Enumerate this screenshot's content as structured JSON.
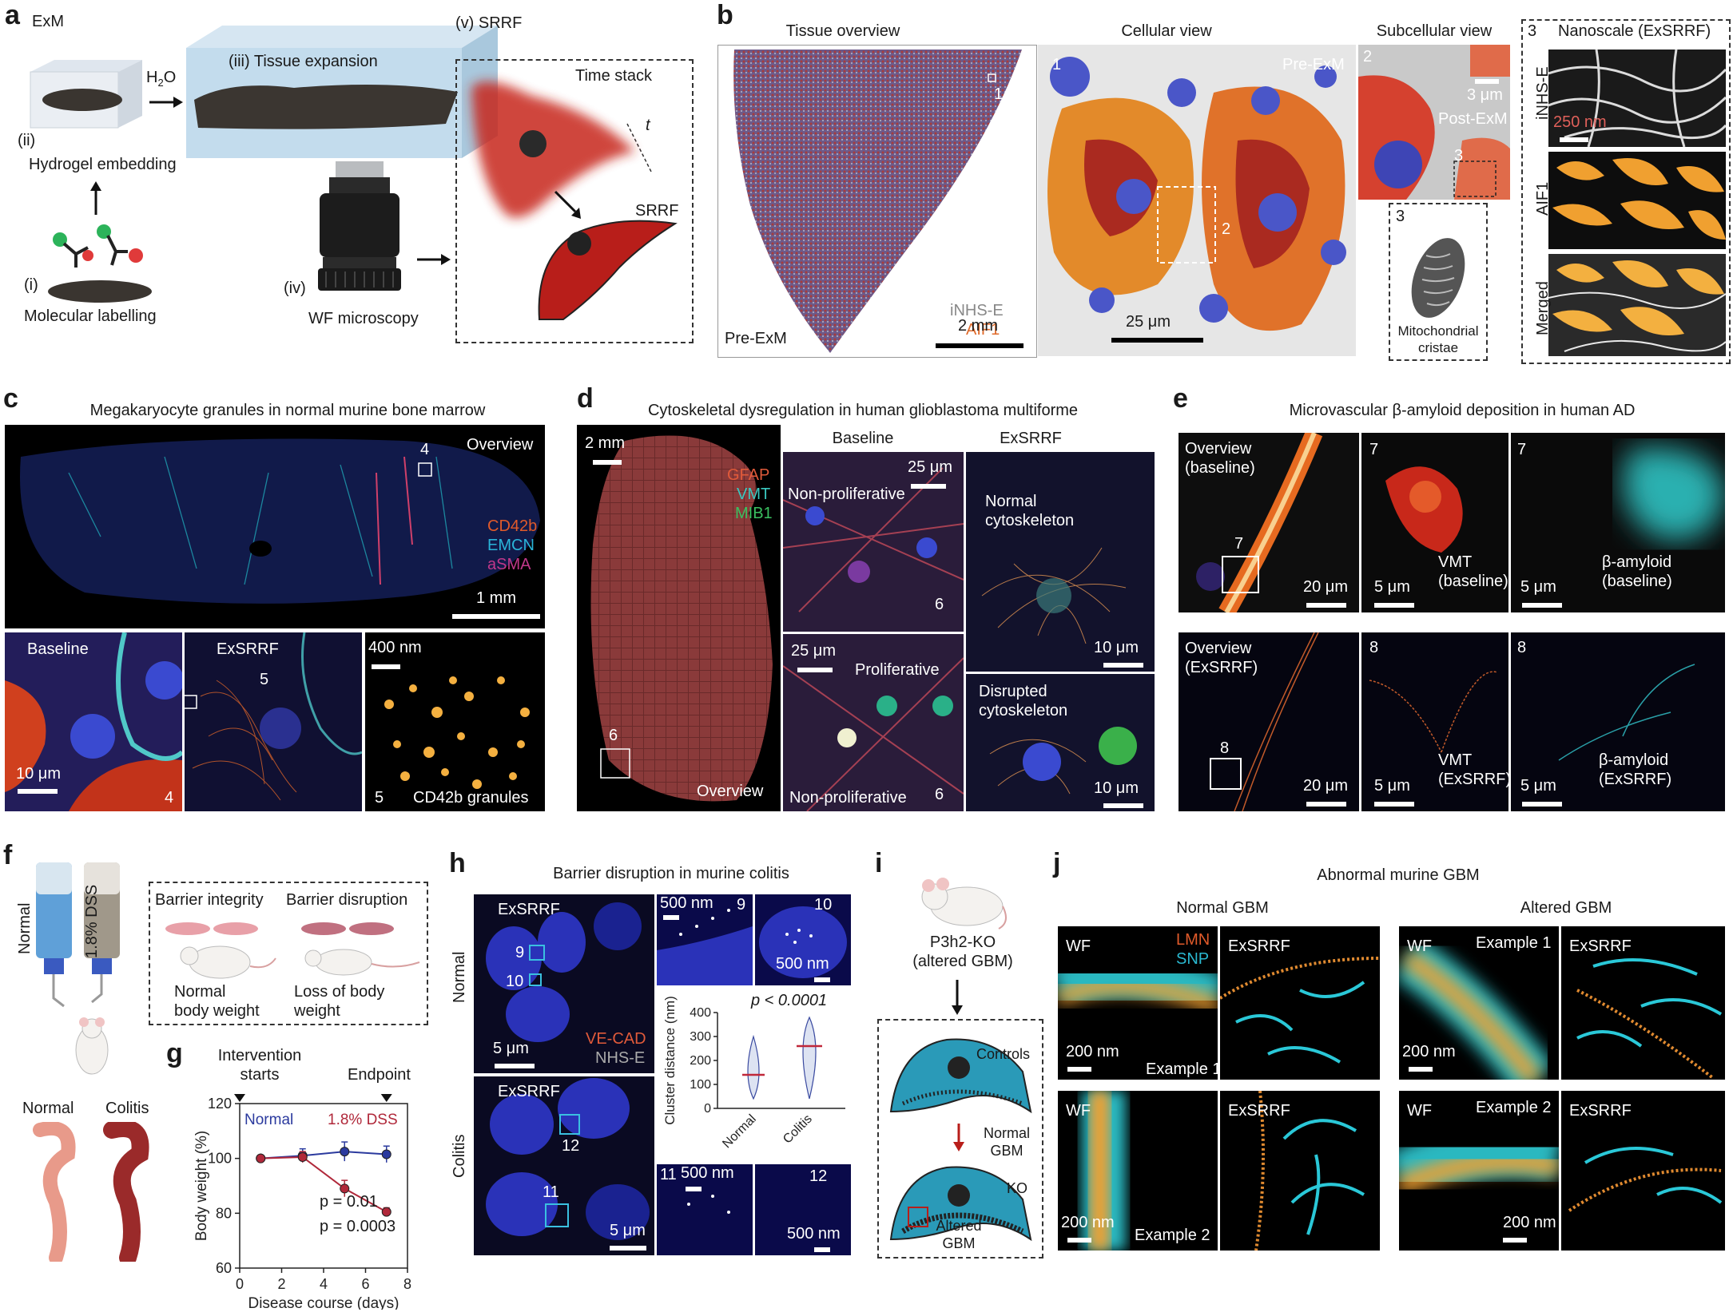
{
  "panel_letters": {
    "a": "a",
    "b": "b",
    "c": "c",
    "d": "d",
    "e": "e",
    "f": "f",
    "g": "g",
    "h": "h",
    "i": "i",
    "j": "j"
  },
  "a": {
    "exm": "ExM",
    "h2o_main": "H",
    "h2o_sub": "2",
    "h2o_end": "O",
    "step_i": "(i)",
    "step_i_text": "Molecular labelling",
    "step_ii": "(ii)",
    "step_ii_text": "Hydrogel embedding",
    "step_iii": "(iii) Tissue expansion",
    "step_iv": "(iv)",
    "step_iv_text": "WF microscopy",
    "step_v": "(v) SRRF",
    "time_stack": "Time stack",
    "t": "t",
    "srrf": "SRRF"
  },
  "b": {
    "tissue_overview": "Tissue overview",
    "cellular_view": "Cellular view",
    "subcellular_view": "Subcellular view",
    "nanoscale_num": "3",
    "nanoscale": "Nanoscale (ExSRRF)",
    "pre_exm": "Pre-ExM",
    "inhs_e": "iNHS-E",
    "aif1": "AIF1",
    "scale_2mm": "2 mm",
    "n1": "1",
    "n2": "2",
    "n3": "3",
    "cell_pre_exm": "Pre-ExM",
    "scale_25um": "25 μm",
    "scale_3um": "3 μm",
    "post_exm": "Post-ExM",
    "mito_label": "Mitochondrial cristae",
    "scale_250nm": "250 nm",
    "side_inhs": "iNHS-E",
    "side_aif1": "AIF1",
    "side_merged": "Merged"
  },
  "c": {
    "title": "Megakaryocyte granules in normal murine bone marrow",
    "overview": "Overview",
    "n4": "4",
    "n5": "5",
    "cd42b": "CD42b",
    "emcn": "EMCN",
    "asma": "aSMA",
    "scale_1mm": "1 mm",
    "baseline": "Baseline",
    "exsrrf": "ExSRRF",
    "scale_10um": "10 μm",
    "scale_400nm": "400 nm",
    "granules": "CD42b granules"
  },
  "d": {
    "title": "Cytoskeletal dysregulation in human glioblastoma multiforme",
    "scale_2mm": "2 mm",
    "gfap": "GFAP",
    "vmt": "VMT",
    "mib1": "MIB1",
    "n6": "6",
    "overview": "Overview",
    "baseline": "Baseline",
    "exsrrf": "ExSRRF",
    "scale_25um": "25 μm",
    "non_prolif": "Non-proliferative",
    "prolif": "Proliferative",
    "normal_cyto": "Normal cytoskeleton",
    "disrupted_cyto": "Disrupted cytoskeleton",
    "scale_10um": "10 μm"
  },
  "e": {
    "title": "Microvascular β-amyloid deposition in human AD",
    "overview_baseline": "Overview (baseline)",
    "overview_exsrrf": "Overview (ExSRRF)",
    "n7": "7",
    "n8": "8",
    "vmt_baseline": "VMT (baseline)",
    "abeta_baseline": "β-amyloid (baseline)",
    "vmt_exsrrf": "VMT (ExSRRF)",
    "abeta_exsrrf": "β-amyloid (ExSRRF)",
    "scale_20um": "20 μm",
    "scale_5um": "5 μm"
  },
  "f": {
    "normal": "Normal",
    "dss": "1.8% DSS",
    "barrier_integrity": "Barrier integrity",
    "barrier_disruption": "Barrier disruption",
    "normal_weight": "Normal body weight",
    "loss_weight": "Loss of body weight",
    "colon_normal": "Normal",
    "colon_colitis": "Colitis"
  },
  "g": {
    "intervention": "Intervention starts",
    "endpoint": "Endpoint",
    "p1": "p = 0.01",
    "p2": "p = 0.0003"
  },
  "h": {
    "title": "Barrier disruption in murine colitis",
    "normal": "Normal",
    "colitis": "Colitis",
    "exsrrf": "ExSRRF",
    "n9": "9",
    "n10": "10",
    "n11": "11",
    "n12": "12",
    "scale_5um": "5 μm",
    "scale_500nm": "500 nm",
    "ve_cad": "VE-CAD",
    "nhs_e": "NHS-E",
    "pval": "p < 0.0001"
  },
  "i": {
    "mouse": "P3h2-KO (altered GBM)",
    "controls": "Controls",
    "normal_gbm": "Normal GBM",
    "ko": "KO",
    "altered_gbm": "Altered GBM"
  },
  "j": {
    "title": "Abnormal murine GBM",
    "normal_gbm": "Normal GBM",
    "altered_gbm": "Altered GBM",
    "wf": "WF",
    "exsrrf": "ExSRRF",
    "lmn": "LMN",
    "snp": "SNP",
    "example1": "Example 1",
    "example2": "Example 2",
    "scale_200nm": "200 nm"
  },
  "chart_data": [
    {
      "type": "line",
      "title": "",
      "xlabel": "Disease course (days)",
      "ylabel": "Body weight (%)",
      "xlim": [
        0,
        8
      ],
      "ylim": [
        60,
        120
      ],
      "xticks": [
        0,
        2,
        4,
        6,
        8
      ],
      "yticks": [
        60,
        80,
        100,
        120
      ],
      "series": [
        {
          "name": "Normal",
          "color": "#2b3a9e",
          "x": [
            1,
            3,
            5,
            7
          ],
          "y": [
            100,
            101,
            102.5,
            101.5
          ],
          "err": [
            0,
            2.5,
            3.5,
            3
          ]
        },
        {
          "name": "1.8% DSS",
          "color": "#b0283a",
          "x": [
            1,
            3,
            5,
            7
          ],
          "y": [
            100,
            100.5,
            89,
            80.5
          ],
          "err": [
            0,
            2,
            3,
            1.5
          ]
        }
      ]
    },
    {
      "type": "violin",
      "title": "",
      "ylabel": "Cluster distance (nm)",
      "categories": [
        "Normal",
        "Colitis"
      ],
      "ylim": [
        0,
        400
      ],
      "yticks": [
        0,
        100,
        200,
        300,
        400
      ],
      "medians": [
        140,
        260
      ]
    }
  ]
}
